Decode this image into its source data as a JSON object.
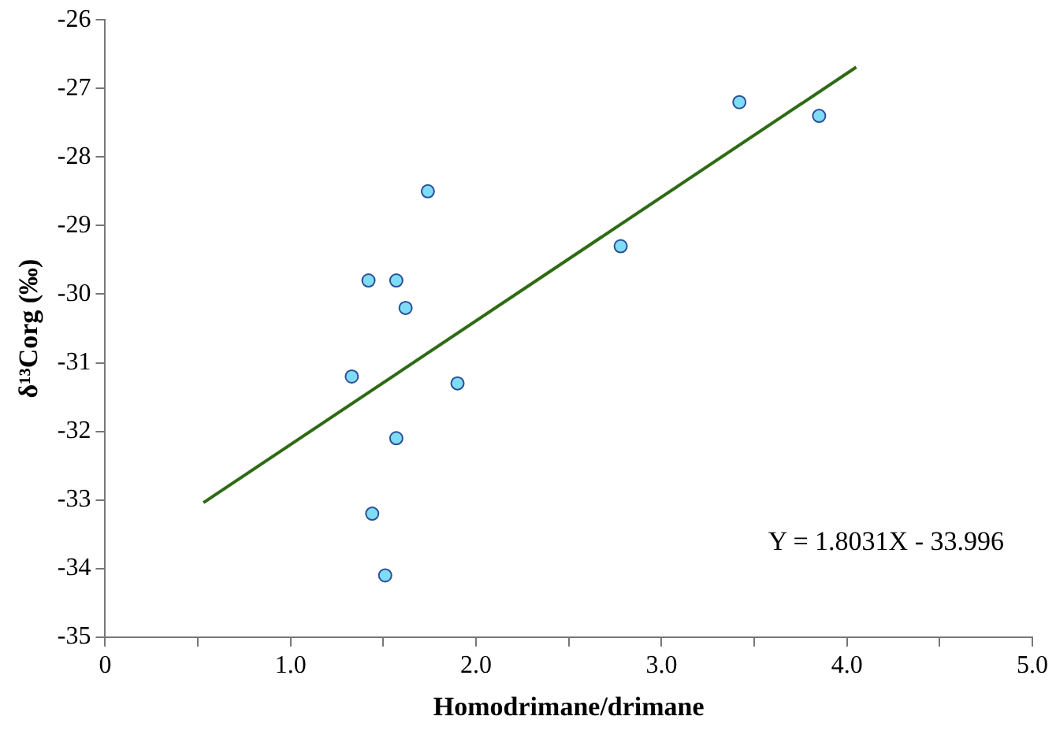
{
  "chart_data": {
    "type": "scatter",
    "xlabel": "Homodrimane/drimane",
    "ylabel": "δ¹³Corg (‰)",
    "xlim": [
      0,
      5
    ],
    "xticks": [
      0,
      {
        "value": 0.5,
        "label": null
      },
      {
        "value": 1,
        "label": "1.0"
      },
      {
        "value": 1.5,
        "label": null
      },
      {
        "value": 2,
        "label": "2.0"
      },
      {
        "value": 2.5,
        "label": null
      },
      {
        "value": 3,
        "label": "3.0"
      },
      {
        "value": 3.5,
        "label": null
      },
      {
        "value": 4,
        "label": "4.0"
      },
      {
        "value": 4.5,
        "label": null
      },
      {
        "value": 5,
        "label": "5.0"
      }
    ],
    "ylim": [
      -35,
      -26
    ],
    "yticks": [
      -35,
      -34,
      -33,
      -32,
      -31,
      -30,
      -29,
      -28,
      -27,
      -26
    ],
    "grid": false,
    "legend": false,
    "marker": "circle",
    "series": [
      {
        "type": "scatter",
        "color": "#7fdcf5",
        "x": [
          1.74,
          1.42,
          1.57,
          1.62,
          1.33,
          1.9,
          1.57,
          1.44,
          1.51,
          2.78,
          3.42,
          3.85
        ],
        "values": [
          -28.5,
          -29.8,
          -29.8,
          -30.2,
          -31.2,
          -31.3,
          -32.1,
          -33.2,
          -34.1,
          -29.3,
          -27.2,
          -27.4
        ]
      },
      {
        "type": "line",
        "color": "#2e6b14",
        "marker": "none",
        "x": [
          0.53,
          4.05
        ],
        "values": [
          -33.04,
          -26.69
        ]
      }
    ],
    "annotations": [
      "Y = 1.8031X - 33.996"
    ]
  }
}
